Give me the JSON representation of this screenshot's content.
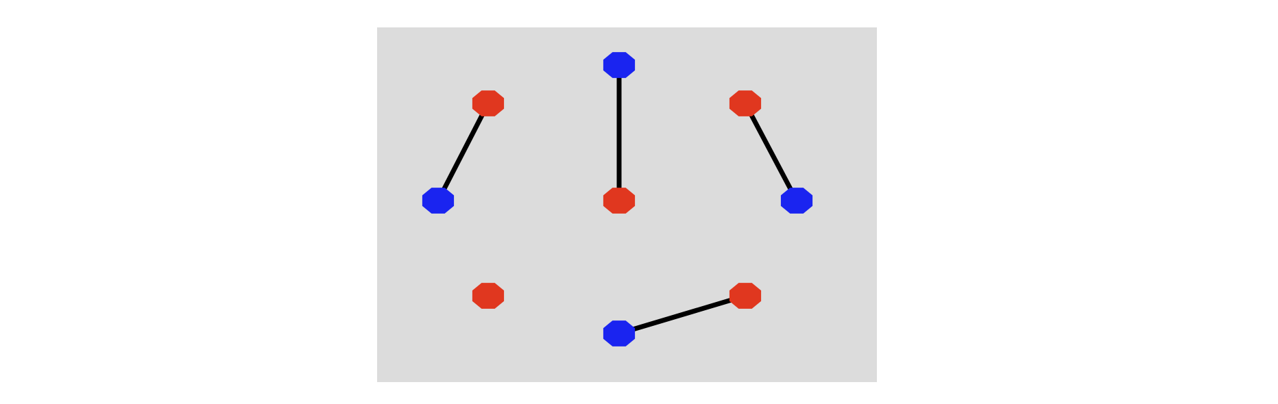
{
  "colors": {
    "page_background": "#ffffff",
    "panel_background": "#dcdcdc",
    "red_node": "#e0371f",
    "blue_node": "#1a24f0",
    "edge": "#000000"
  },
  "nodes": [
    {
      "id": "n-top-center",
      "color": "blue"
    },
    {
      "id": "n-upper-left",
      "color": "red"
    },
    {
      "id": "n-upper-right",
      "color": "red"
    },
    {
      "id": "n-mid-left",
      "color": "blue"
    },
    {
      "id": "n-mid-center",
      "color": "red"
    },
    {
      "id": "n-mid-right",
      "color": "blue"
    },
    {
      "id": "n-lower-left",
      "color": "red"
    },
    {
      "id": "n-lower-right",
      "color": "red"
    },
    {
      "id": "n-bottom-center",
      "color": "blue"
    }
  ],
  "edges": [
    {
      "from": "n-upper-left",
      "to": "n-mid-left"
    },
    {
      "from": "n-top-center",
      "to": "n-mid-center"
    },
    {
      "from": "n-upper-right",
      "to": "n-mid-right"
    },
    {
      "from": "n-lower-right",
      "to": "n-bottom-center"
    }
  ]
}
